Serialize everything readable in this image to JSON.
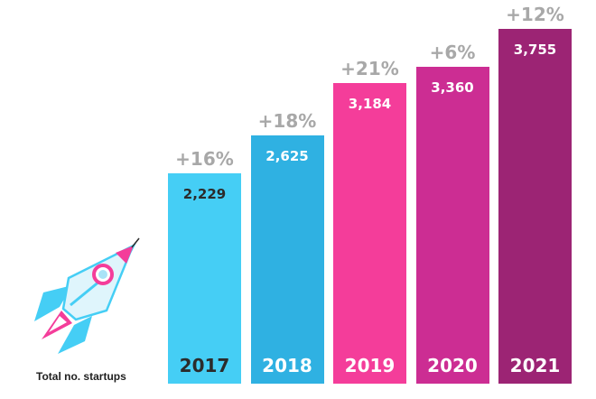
{
  "caption": "Total no. startups",
  "chart_data": {
    "type": "bar",
    "title": "",
    "xlabel": "",
    "ylabel": "",
    "categories": [
      "2017",
      "2018",
      "2019",
      "2020",
      "2021"
    ],
    "values": [
      2229,
      2625,
      3184,
      3360,
      3755
    ],
    "value_labels": [
      "2,229",
      "2,625",
      "3,184",
      "3,360",
      "3,755"
    ],
    "growth_labels": [
      "+16%",
      "+18%",
      "+21%",
      "+6%",
      "+12%"
    ],
    "colors": [
      "#45cef5",
      "#2fb1e2",
      "#f43d9a",
      "#cc2d93",
      "#9c2474"
    ],
    "category_label_colors": [
      "#2b2b2b",
      "#ffffff",
      "#ffffff",
      "#ffffff",
      "#ffffff"
    ],
    "growth_label_color": "#a8a8a8",
    "grid": false,
    "legend": "none"
  }
}
